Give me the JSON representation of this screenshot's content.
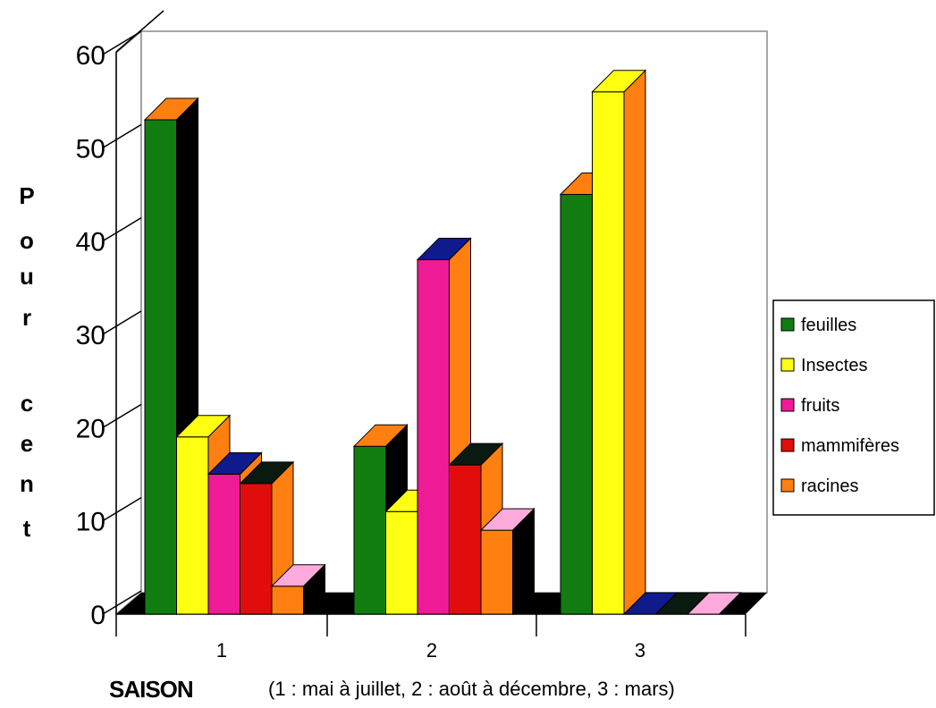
{
  "chart_data": {
    "type": "bar",
    "title": "",
    "xlabel": "SAISON",
    "ylabel": "Pour cent",
    "x_note": "(1 : mai à juillet, 2 : août à décembre, 3 : mars)",
    "categories": [
      "1",
      "2",
      "3"
    ],
    "ylim": [
      0,
      60
    ],
    "yticks": [
      0,
      10,
      20,
      30,
      40,
      50,
      60
    ],
    "grid": false,
    "legend_position": "right",
    "series": [
      {
        "name": "feuilles",
        "color": "#117d11",
        "values": [
          53,
          18,
          45
        ]
      },
      {
        "name": "Insectes",
        "color": "#ffff12",
        "values": [
          19,
          11,
          56
        ]
      },
      {
        "name": " fruits",
        "color": "#ee1a96",
        "values": [
          15,
          38,
          0
        ]
      },
      {
        "name": "mammifères",
        "color": "#e10d0d",
        "values": [
          14,
          16,
          0
        ]
      },
      {
        "name": "racines",
        "color": "#ff8010",
        "values": [
          3,
          9,
          0
        ]
      }
    ],
    "cap_colors": [
      [
        "#ff8010",
        "#ffff12",
        "#0f1a8c",
        "#0a1a10",
        "#ffaadd"
      ],
      [
        "#ff8010",
        "#ffff12",
        "#0f1a8c",
        "#0a1a10",
        "#ffaadd"
      ],
      [
        "#ff8010",
        "#ffff12",
        "#0f1a8c",
        "#0a1a10",
        "#ffaadd"
      ]
    ],
    "side_colors": [
      [
        "#000000",
        "#ff8010",
        "#ff8010",
        "#ff8010",
        "#000000"
      ],
      [
        "#000000",
        "#ff8010",
        "#ff8010",
        "#ff8010",
        "#000000"
      ],
      [
        "#000000",
        "#ff8010",
        "#ff8010",
        "#ff8010",
        "#000000"
      ]
    ]
  }
}
